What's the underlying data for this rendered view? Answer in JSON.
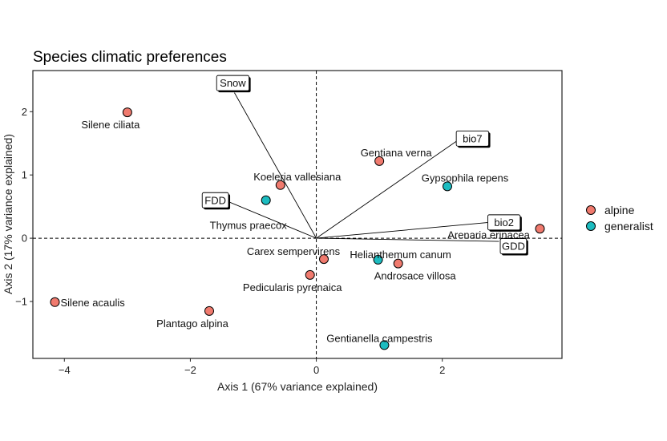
{
  "chart_data": {
    "type": "scatter",
    "title": "Species climatic preferences",
    "xlabel": "Axis 1 (67% variance explained)",
    "ylabel": "Axis 2 (17% variance explained)",
    "xlim": [
      -4.5,
      3.9
    ],
    "ylim": [
      -1.9,
      2.65
    ],
    "xticks": [
      -4,
      -2,
      0,
      2
    ],
    "yticks": [
      -1,
      0,
      1,
      2
    ],
    "colors": {
      "alpine": "#f07a6e",
      "generalist": "#1cbcc0"
    },
    "legend": {
      "position": "right",
      "entries": [
        {
          "key": "alpine",
          "label": "alpine"
        },
        {
          "key": "generalist",
          "label": "generalist"
        }
      ]
    },
    "points": [
      {
        "name": "Silene ciliata",
        "group": "alpine",
        "x": -3.0,
        "y": 1.99
      },
      {
        "name": "Gentiana verna",
        "group": "alpine",
        "x": 1.0,
        "y": 1.22
      },
      {
        "name": "Koeleria vallesiana",
        "group": "alpine",
        "x": -0.57,
        "y": 0.84
      },
      {
        "name": "Gypsophila repens",
        "group": "generalist",
        "x": 2.08,
        "y": 0.82
      },
      {
        "name": "Thymus praecox",
        "group": "generalist",
        "x": -0.8,
        "y": 0.6
      },
      {
        "name": "Arenaria erinacea",
        "group": "alpine",
        "x": 3.55,
        "y": 0.15
      },
      {
        "name": "Carex sempervirens",
        "group": "alpine",
        "x": 0.12,
        "y": -0.33
      },
      {
        "name": "Helianthemum canum",
        "group": "generalist",
        "x": 0.98,
        "y": -0.34
      },
      {
        "name": "Androsace villosa",
        "group": "alpine",
        "x": 1.3,
        "y": -0.4
      },
      {
        "name": "Pedicularis pyrenaica",
        "group": "alpine",
        "x": -0.1,
        "y": -0.58
      },
      {
        "name": "Silene acaulis",
        "group": "alpine",
        "x": -4.15,
        "y": -1.01
      },
      {
        "name": "Plantago alpina",
        "group": "alpine",
        "x": -1.7,
        "y": -1.15
      },
      {
        "name": "Gentianella campestris",
        "group": "generalist",
        "x": 1.08,
        "y": -1.69
      }
    ],
    "vectors": [
      {
        "name": "Snow",
        "x": -1.3,
        "y": 2.3
      },
      {
        "name": "bio7",
        "x": 2.25,
        "y": 1.55
      },
      {
        "name": "FDD",
        "x": -1.45,
        "y": 0.6
      },
      {
        "name": "bio2",
        "x": 2.75,
        "y": 0.25
      },
      {
        "name": "GDD",
        "x": 2.9,
        "y": -0.05
      }
    ]
  }
}
